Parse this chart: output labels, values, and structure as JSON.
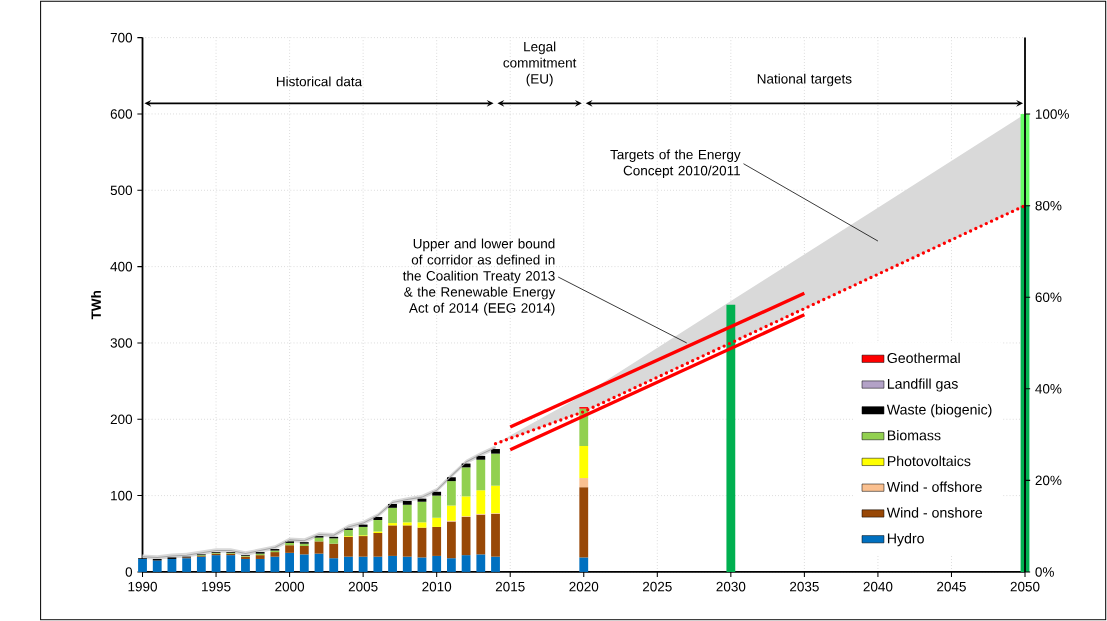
{
  "chart_data": {
    "type": "bar",
    "stacked": true,
    "ylabel": "TWh",
    "x": [
      1990,
      1991,
      1992,
      1993,
      1994,
      1995,
      1996,
      1997,
      1998,
      1999,
      2000,
      2001,
      2002,
      2003,
      2004,
      2005,
      2006,
      2007,
      2008,
      2009,
      2010,
      2011,
      2012,
      2013,
      2014,
      2020,
      2030,
      2050
    ],
    "series": [
      {
        "name": "Hydro",
        "color": "#0070c0",
        "values": [
          17,
          15,
          17,
          18,
          20,
          22,
          22,
          17,
          17,
          20,
          25,
          23,
          24,
          18,
          20,
          20,
          20,
          21,
          20,
          19,
          21,
          18,
          22,
          23,
          20,
          19,
          0,
          0
        ]
      },
      {
        "name": "Wind - onshore",
        "color": "#984807",
        "values": [
          0,
          0,
          0,
          1,
          1,
          2,
          2,
          3,
          5,
          6,
          10,
          11,
          16,
          19,
          26,
          27,
          31,
          40,
          41,
          39,
          38,
          48,
          50,
          52,
          56,
          92,
          0,
          0
        ]
      },
      {
        "name": "Wind - offshore",
        "color": "#fac090",
        "values": [
          0,
          0,
          0,
          0,
          0,
          0,
          0,
          0,
          0,
          0,
          0,
          0,
          0,
          0,
          0,
          0,
          0,
          0,
          0,
          0,
          0,
          1,
          1,
          1,
          1,
          12,
          0,
          0
        ]
      },
      {
        "name": "Photovoltaics",
        "color": "#ffff00",
        "values": [
          0,
          0,
          0,
          0,
          0,
          0,
          0,
          0,
          0,
          0,
          0,
          0,
          0,
          0,
          1,
          1,
          2,
          3,
          4,
          7,
          12,
          20,
          26,
          31,
          36,
          42,
          0,
          0
        ]
      },
      {
        "name": "Biomass",
        "color": "#92d050",
        "values": [
          0,
          0,
          0,
          0,
          1,
          1,
          1,
          1,
          2,
          2,
          3,
          3,
          5,
          7,
          8,
          11,
          15,
          20,
          23,
          27,
          29,
          32,
          38,
          40,
          42,
          49,
          0,
          0
        ]
      },
      {
        "name": "Waste (biogenic)",
        "color": "#000000",
        "values": [
          1,
          2,
          2,
          1,
          1,
          1,
          1,
          1,
          2,
          2,
          2,
          2,
          2,
          2,
          2,
          3,
          4,
          5,
          5,
          4,
          5,
          5,
          5,
          5,
          6,
          0,
          0,
          0
        ]
      },
      {
        "name": "Landfill gas",
        "color": "#b3a2c7",
        "values": [
          0,
          0,
          0,
          0,
          0,
          0,
          0,
          0,
          0,
          0,
          0,
          0,
          0,
          0,
          0,
          0,
          0,
          0,
          0,
          0,
          0,
          0,
          0,
          0,
          0,
          0,
          0,
          0
        ]
      },
      {
        "name": "Geothermal",
        "color": "#ff0000",
        "values": [
          0,
          0,
          0,
          0,
          0,
          0,
          0,
          0,
          0,
          0,
          0,
          0,
          0,
          0,
          0,
          0,
          0,
          0,
          0,
          0,
          0,
          0,
          0,
          0,
          0,
          2,
          0,
          0
        ]
      },
      {
        "color": "#00b050",
        "values": [
          0,
          0,
          0,
          0,
          0,
          0,
          0,
          0,
          0,
          0,
          0,
          0,
          0,
          0,
          0,
          0,
          0,
          0,
          0,
          0,
          0,
          0,
          0,
          0,
          0,
          0,
          350,
          480
        ]
      },
      {
        "color": "#66ff66",
        "values": [
          0,
          0,
          0,
          0,
          0,
          0,
          0,
          0,
          0,
          0,
          0,
          0,
          0,
          0,
          0,
          0,
          0,
          0,
          0,
          0,
          0,
          0,
          0,
          0,
          0,
          0,
          0,
          120
        ]
      },
      {
        "type": "line",
        "color": "#a6a6a6",
        "x": [
          1990,
          1991,
          1992,
          1993,
          1994,
          1995,
          1996,
          1997,
          1998,
          1999,
          2000,
          2001,
          2002,
          2003,
          2004,
          2005,
          2006,
          2007,
          2008,
          2009,
          2010,
          2011,
          2012,
          2013,
          2014
        ],
        "values": [
          20,
          19,
          21,
          22,
          25,
          28,
          28,
          24,
          28,
          32,
          42,
          41,
          49,
          48,
          59,
          64,
          74,
          91,
          95,
          98,
          107,
          126,
          144,
          154,
          163
        ],
        "lower": [
          17,
          16,
          18,
          19,
          22,
          25,
          25,
          21,
          25,
          29,
          39,
          38,
          46,
          45,
          56,
          61,
          71,
          88,
          92,
          95,
          104,
          123,
          141,
          151,
          160
        ],
        "upper": [
          23,
          22,
          24,
          25,
          28,
          31,
          31,
          27,
          31,
          35,
          45,
          44,
          52,
          51,
          62,
          67,
          77,
          94,
          98,
          101,
          110,
          129,
          147,
          157,
          166
        ]
      },
      {
        "type": "line",
        "color": "#ff0000",
        "line_style": "dotted",
        "x": [
          2014,
          2020,
          2030,
          2040,
          2050
        ],
        "values": [
          168,
          210,
          300,
          390,
          480
        ],
        "lower": [
          168,
          210,
          300,
          390,
          480
        ],
        "upper": [
          168,
          232,
          355,
          477,
          600
        ]
      },
      {
        "type": "line",
        "color": "#ff0000",
        "x": [
          2015,
          2035
        ],
        "values": [
          190,
          365
        ]
      },
      {
        "type": "line",
        "color": "#ff0000",
        "x": [
          2015,
          2035
        ],
        "values": [
          160,
          337
        ]
      }
    ],
    "xlim": [
      1990,
      2050
    ],
    "xticks": [
      1990,
      1995,
      2000,
      2005,
      2010,
      2015,
      2020,
      2025,
      2030,
      2035,
      2040,
      2045,
      2050
    ],
    "ylim": [
      0,
      700
    ],
    "yticks": [
      0,
      100,
      200,
      300,
      400,
      500,
      600,
      700
    ],
    "y2lim": [
      0,
      116.7
    ],
    "y2ticks": [
      {
        "value": 0,
        "label": "0%"
      },
      {
        "value": 20,
        "label": "20%"
      },
      {
        "value": 40,
        "label": "40%"
      },
      {
        "value": 60,
        "label": "60%"
      },
      {
        "value": 80,
        "label": "80%"
      },
      {
        "value": 100,
        "label": "100%"
      }
    ],
    "annotations": [
      "Historical data",
      "Legal commitment (EU)",
      "National targets",
      "Targets of the Energy Concept 2010/2011",
      {
        "text": "Upper and lower bound of corridor as defined in the Coalition Treaty 2013 & the Renewable Energy Act of 2014 (EEG 2014)",
        "x": 2027,
        "y": 300
      }
    ],
    "grid": true,
    "legend": "bottom right",
    "marker": "none"
  }
}
